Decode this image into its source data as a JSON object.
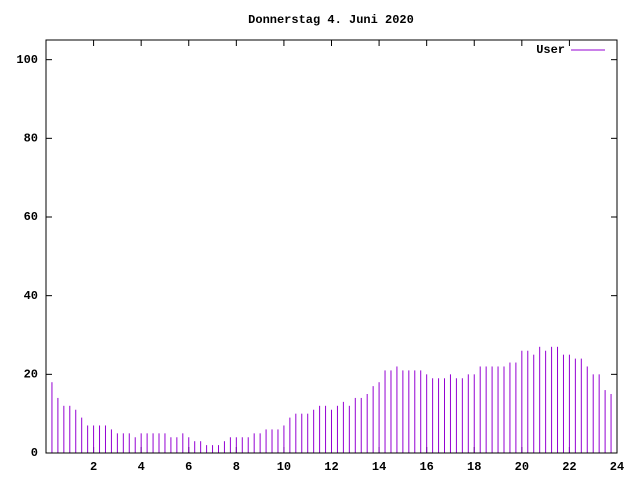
{
  "chart_data": {
    "type": "impulse",
    "title": "Donnerstag 4. Juni 2020",
    "x": [
      0,
      0.25,
      0.5,
      0.75,
      1,
      1.25,
      1.5,
      1.75,
      2,
      2.25,
      2.5,
      2.75,
      3,
      3.25,
      3.5,
      3.75,
      4,
      4.25,
      4.5,
      4.75,
      5,
      5.25,
      5.5,
      5.75,
      6,
      6.25,
      6.5,
      6.75,
      7,
      7.25,
      7.5,
      7.75,
      8,
      8.25,
      8.5,
      8.75,
      9,
      9.25,
      9.5,
      9.75,
      10,
      10.25,
      10.5,
      10.75,
      11,
      11.25,
      11.5,
      11.75,
      12,
      12.25,
      12.5,
      12.75,
      13,
      13.25,
      13.5,
      13.75,
      14,
      14.25,
      14.5,
      14.75,
      15,
      15.25,
      15.5,
      15.75,
      16,
      16.25,
      16.5,
      16.75,
      17,
      17.25,
      17.5,
      17.75,
      18,
      18.25,
      18.5,
      18.75,
      19,
      19.25,
      19.5,
      19.75,
      20,
      20.25,
      20.5,
      20.75,
      21,
      21.25,
      21.5,
      21.75,
      22,
      22.25,
      22.5,
      22.75,
      23,
      23.25,
      23.5,
      23.75,
      24
    ],
    "series": [
      {
        "name": "User",
        "color": "#9400d3",
        "values": [
          20,
          18,
          14,
          12,
          12,
          11,
          9,
          7,
          7,
          7,
          7,
          6,
          5,
          5,
          5,
          4,
          5,
          5,
          5,
          5,
          5,
          4,
          4,
          5,
          4,
          3,
          3,
          2,
          2,
          2,
          3,
          4,
          4,
          4,
          4,
          5,
          5,
          6,
          6,
          6,
          7,
          9,
          10,
          10,
          10,
          11,
          12,
          12,
          11,
          12,
          13,
          12,
          14,
          14,
          15,
          17,
          18,
          21,
          21,
          22,
          21,
          21,
          21,
          21,
          20,
          19,
          19,
          19,
          20,
          19,
          19,
          20,
          20,
          22,
          22,
          22,
          22,
          22,
          23,
          23,
          26,
          26,
          25,
          27,
          26,
          27,
          27,
          25,
          25,
          24,
          24,
          22,
          20,
          20,
          16,
          15,
          15
        ]
      }
    ],
    "xlim": [
      0,
      24
    ],
    "xticks": [
      2,
      4,
      6,
      8,
      10,
      12,
      14,
      16,
      18,
      20,
      22,
      24
    ],
    "ylim": [
      0,
      105
    ],
    "yticks": [
      0,
      20,
      40,
      60,
      80,
      100
    ],
    "legend": "top-right"
  }
}
